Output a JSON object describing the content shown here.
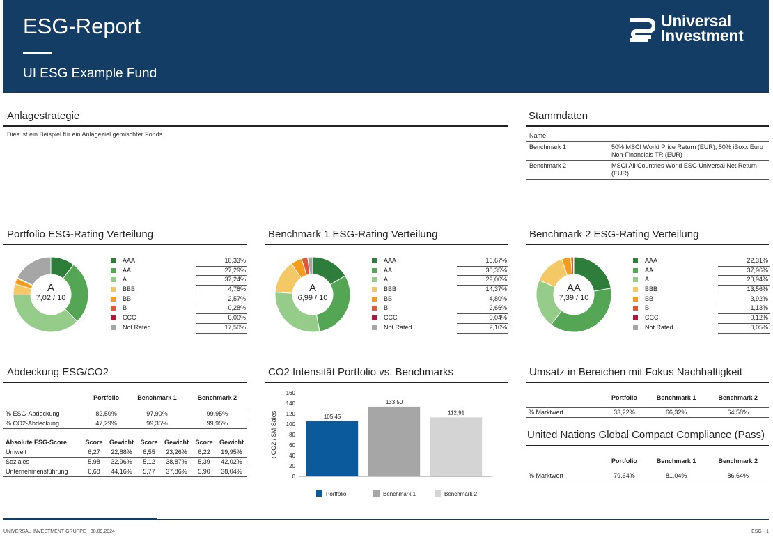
{
  "header": {
    "title": "ESG-Report",
    "subtitle": "UI ESG Example Fund",
    "logo_line1": "Universal",
    "logo_line2": "Investment"
  },
  "strategy": {
    "title": "Anlagestrategie",
    "text": "Dies ist ein Beispiel für ein Anlageziel gemischter Fonds."
  },
  "stammdaten": {
    "title": "Stammdaten",
    "header": "Name",
    "rows": [
      {
        "label": "Benchmark 1",
        "value": "50% MSCI World Price Return (EUR), 50% iBoxx Euro Non-Financials TR (EUR)"
      },
      {
        "label": "Benchmark 2",
        "value": "MSCI All Countries World ESG Universal Net Return (EUR)"
      }
    ]
  },
  "rating_colors": [
    "#2f7d3b",
    "#55a654",
    "#95cc89",
    "#f4c865",
    "#f59b1d",
    "#d95b3a",
    "#b0163b",
    "#a6a6a6"
  ],
  "ratings": [
    {
      "title": "Portfolio ESG-Rating Verteilung",
      "grade": "A",
      "score": "7,02 / 10",
      "labels": [
        "AAA",
        "AA",
        "A",
        "BBB",
        "BB",
        "B",
        "CCC",
        "Not Rated"
      ],
      "values_text": [
        "10,33%",
        "27,29%",
        "37,24%",
        "4,78%",
        "2,57%",
        "0,28%",
        "0,00%",
        "17,50%"
      ],
      "values": [
        10.33,
        27.29,
        37.24,
        4.78,
        2.57,
        0.28,
        0.0,
        17.5
      ]
    },
    {
      "title": "Benchmark 1 ESG-Rating Verteilung",
      "grade": "A",
      "score": "6,99 / 10",
      "labels": [
        "AAA",
        "AA",
        "A",
        "BBB",
        "BB",
        "B",
        "CCC",
        "Not Rated"
      ],
      "values_text": [
        "16,67%",
        "30,35%",
        "29,00%",
        "14,37%",
        "4,80%",
        "2,66%",
        "0,04%",
        "2,10%"
      ],
      "values": [
        16.67,
        30.35,
        29.0,
        14.37,
        4.8,
        2.66,
        0.04,
        2.1
      ]
    },
    {
      "title": "Benchmark 2 ESG-Rating Verteilung",
      "grade": "AA",
      "score": "7,39 / 10",
      "labels": [
        "AAA",
        "AA",
        "A",
        "BBB",
        "BB",
        "B",
        "CCC",
        "Not Rated"
      ],
      "values_text": [
        "22,31%",
        "37,96%",
        "20,94%",
        "13,56%",
        "3,92%",
        "1,13%",
        "0,12%",
        "0,05%"
      ],
      "values": [
        22.31,
        37.96,
        20.94,
        13.56,
        3.92,
        1.13,
        0.12,
        0.05
      ]
    }
  ],
  "coverage": {
    "title": "Abdeckung ESG/CO2",
    "columns": [
      "Portfolio",
      "Benchmark 1",
      "Benchmark 2"
    ],
    "rows": [
      {
        "label": "% ESG-Abdeckung",
        "values": [
          "82,50%",
          "97,90%",
          "99,95%"
        ]
      },
      {
        "label": "% CO2-Abdeckung",
        "values": [
          "47,29%",
          "99,35%",
          "99,95%"
        ]
      }
    ],
    "score_header": "Absolute ESG-Score",
    "score_cols": [
      "Score",
      "Gewicht",
      "Score",
      "Gewicht",
      "Score",
      "Gewicht"
    ],
    "score_rows": [
      {
        "label": "Umwelt",
        "values": [
          "6,27",
          "22,88%",
          "6,55",
          "23,26%",
          "6,22",
          "19,95%"
        ]
      },
      {
        "label": "Soziales",
        "values": [
          "5,98",
          "32,96%",
          "5,12",
          "38,87%",
          "5,39",
          "42,02%"
        ]
      },
      {
        "label": "Unternehmensführung",
        "values": [
          "6,68",
          "44,16%",
          "5,77",
          "37,86%",
          "5,90",
          "38,04%"
        ]
      }
    ]
  },
  "co2": {
    "title": "CO2 Intensität Portfolio vs. Benchmarks"
  },
  "chart_data": {
    "type": "bar",
    "categories": [
      "Portfolio",
      "Benchmark 1",
      "Benchmark 2"
    ],
    "values": [
      105.45,
      133.5,
      112.91
    ],
    "value_labels": [
      "105,45",
      "133,50",
      "112,91"
    ],
    "colors": [
      "#0a5a9c",
      "#a6a6a6",
      "#d4d4d4"
    ],
    "ylabel": "t CO2 / $M Sales",
    "ylim": [
      0,
      160
    ],
    "yticks": [
      0,
      20,
      40,
      60,
      80,
      100,
      120,
      140,
      160
    ],
    "legend": [
      "Portfolio",
      "Benchmark 1",
      "Benchmark 2"
    ],
    "legend_position": "bottom",
    "grid": false
  },
  "umsatz": {
    "title": "Umsatz in Bereichen mit Fokus Nachhaltigkeit",
    "columns": [
      "Portfolio",
      "Benchmark 1",
      "Benchmark 2"
    ],
    "row": {
      "label": "% Marktwert",
      "values": [
        "33,22%",
        "66,32%",
        "64,58%"
      ]
    }
  },
  "ungc": {
    "title": "United Nations Global Compact Compliance (Pass)",
    "columns": [
      "Portfolio",
      "Benchmark 1",
      "Benchmark 2"
    ],
    "row": {
      "label": "% Marktwert",
      "values": [
        "79,64%",
        "81,04%",
        "86,64%"
      ]
    }
  },
  "footer": {
    "left": "UNIVERSAL-INVESTMENT-GRUPPE - 30.09.2024",
    "right": "ESG - 1"
  }
}
